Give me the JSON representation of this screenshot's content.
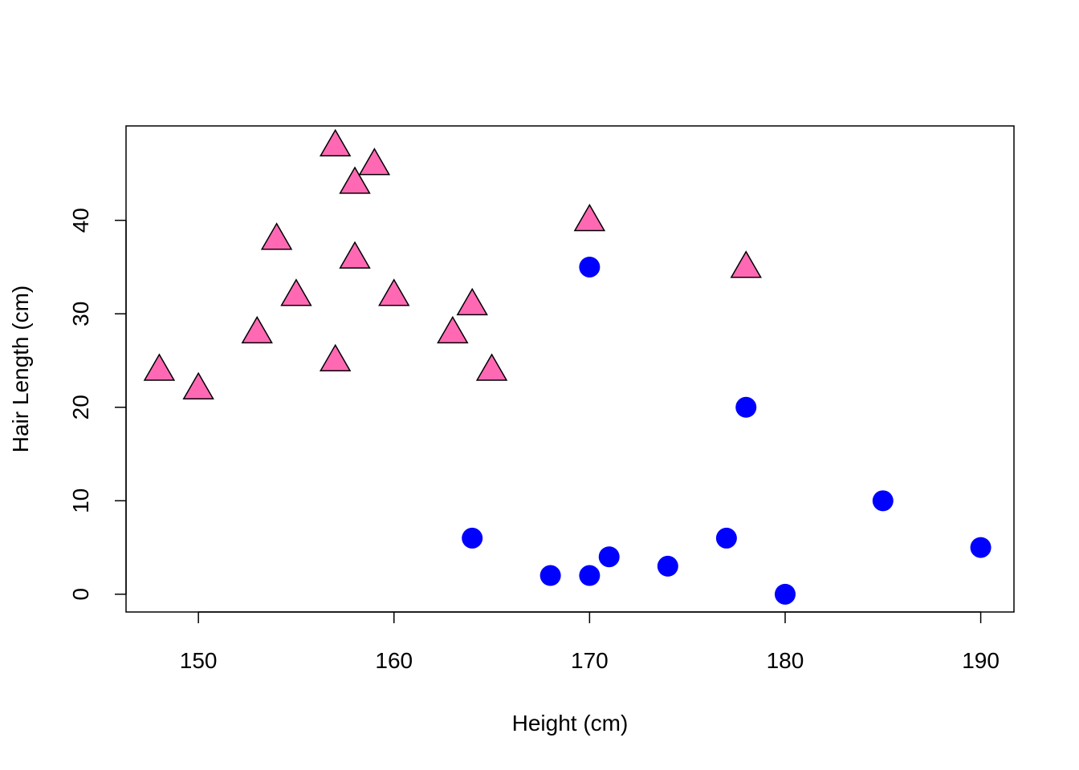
{
  "chart_data": {
    "type": "scatter",
    "title": "",
    "xlabel": "Height (cm)",
    "ylabel": "Hair Length (cm)",
    "xlim": [
      146.3,
      191.7
    ],
    "ylim": [
      -1.9,
      50.1
    ],
    "x_ticks": [
      150,
      160,
      170,
      180,
      190
    ],
    "y_ticks": [
      0,
      10,
      20,
      30,
      40
    ],
    "grid": false,
    "legend": "none",
    "series": [
      {
        "marker": "triangle",
        "color": "#FF69B4",
        "edge_color": "#000000",
        "points": [
          {
            "x": 148,
            "y": 24
          },
          {
            "x": 150,
            "y": 22
          },
          {
            "x": 153,
            "y": 28
          },
          {
            "x": 154,
            "y": 38
          },
          {
            "x": 155,
            "y": 32
          },
          {
            "x": 157,
            "y": 48
          },
          {
            "x": 157,
            "y": 25
          },
          {
            "x": 158,
            "y": 44
          },
          {
            "x": 158,
            "y": 36
          },
          {
            "x": 159,
            "y": 46
          },
          {
            "x": 160,
            "y": 32
          },
          {
            "x": 163,
            "y": 28
          },
          {
            "x": 164,
            "y": 31
          },
          {
            "x": 165,
            "y": 24
          },
          {
            "x": 170,
            "y": 40
          },
          {
            "x": 178,
            "y": 35
          }
        ]
      },
      {
        "marker": "circle",
        "color": "#0000FF",
        "points": [
          {
            "x": 164,
            "y": 6
          },
          {
            "x": 168,
            "y": 2
          },
          {
            "x": 170,
            "y": 2
          },
          {
            "x": 170,
            "y": 35
          },
          {
            "x": 171,
            "y": 4
          },
          {
            "x": 174,
            "y": 3
          },
          {
            "x": 177,
            "y": 6
          },
          {
            "x": 178,
            "y": 20
          },
          {
            "x": 180,
            "y": 0
          },
          {
            "x": 185,
            "y": 10
          },
          {
            "x": 190,
            "y": 5
          }
        ]
      }
    ]
  }
}
